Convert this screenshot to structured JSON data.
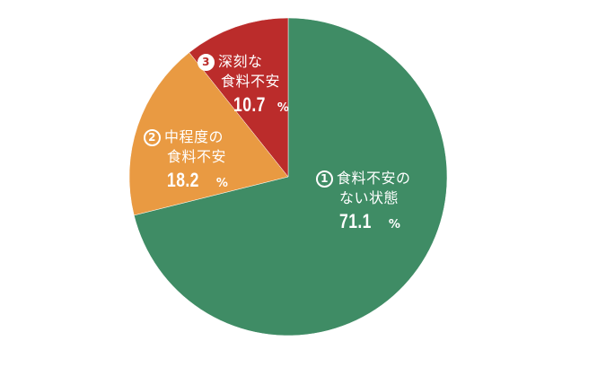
{
  "chart_data": {
    "type": "pie",
    "start": "top",
    "direction": "clockwise",
    "slices": [
      {
        "index": "1",
        "label": "食料不安のない状態",
        "label_lines": [
          "食料不安の",
          "ない状態"
        ],
        "value": 71.1,
        "unit": "%",
        "color": "#3f8c65"
      },
      {
        "index": "2",
        "label": "中程度の食料不安",
        "label_lines": [
          "中程度の",
          "食料不安"
        ],
        "value": 18.2,
        "unit": "%",
        "color": "#e99a42"
      },
      {
        "index": "3",
        "label": "深刻な食料不安",
        "label_lines": [
          "深刻な",
          "食料不安"
        ],
        "value": 10.7,
        "unit": "%",
        "color": "#bb2c2b"
      }
    ]
  }
}
